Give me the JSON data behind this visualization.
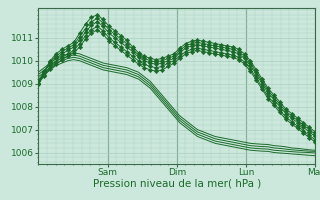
{
  "background_color": "#cce8dc",
  "grid_color": "#aacfbf",
  "line_color": "#1a6b2a",
  "marker_color": "#1a6b2a",
  "xlabel": "Pression niveau de la mer( hPa )",
  "xlabel_fontsize": 7.5,
  "tick_label_fontsize": 6.5,
  "day_labels": [
    "Sam",
    "Dim",
    "Lun",
    "Mar"
  ],
  "ylim": [
    1005.5,
    1012.3
  ],
  "yticks": [
    1006,
    1007,
    1008,
    1009,
    1010,
    1011
  ],
  "n_days": 4,
  "hours_per_day": 24,
  "smooth_series": [
    [
      1009.5,
      1009.7,
      1009.9,
      1010.1,
      1010.2,
      1010.3,
      1010.35,
      1010.3,
      1010.2,
      1010.1,
      1010.0,
      1009.9,
      1009.85,
      1009.8,
      1009.75,
      1009.7,
      1009.6,
      1009.5,
      1009.3,
      1009.1,
      1008.8,
      1008.5,
      1008.2,
      1007.9,
      1007.6,
      1007.4,
      1007.2,
      1007.0,
      1006.9,
      1006.8,
      1006.7,
      1006.65,
      1006.6,
      1006.55,
      1006.5,
      1006.45,
      1006.4,
      1006.38,
      1006.36,
      1006.35,
      1006.3,
      1006.28,
      1006.25,
      1006.2,
      1006.18,
      1006.15,
      1006.12,
      1006.1
    ],
    [
      1009.4,
      1009.6,
      1009.8,
      1010.0,
      1010.1,
      1010.2,
      1010.25,
      1010.2,
      1010.1,
      1010.0,
      1009.9,
      1009.8,
      1009.75,
      1009.7,
      1009.65,
      1009.6,
      1009.5,
      1009.4,
      1009.2,
      1009.0,
      1008.7,
      1008.4,
      1008.1,
      1007.8,
      1007.5,
      1007.3,
      1007.1,
      1006.9,
      1006.8,
      1006.7,
      1006.6,
      1006.55,
      1006.5,
      1006.45,
      1006.4,
      1006.35,
      1006.3,
      1006.28,
      1006.26,
      1006.25,
      1006.2,
      1006.18,
      1006.15,
      1006.12,
      1006.1,
      1006.08,
      1006.06,
      1006.05
    ],
    [
      1009.3,
      1009.5,
      1009.7,
      1009.9,
      1010.0,
      1010.1,
      1010.15,
      1010.1,
      1010.0,
      1009.9,
      1009.8,
      1009.7,
      1009.65,
      1009.6,
      1009.55,
      1009.5,
      1009.4,
      1009.3,
      1009.1,
      1008.9,
      1008.6,
      1008.3,
      1008.0,
      1007.7,
      1007.4,
      1007.2,
      1007.0,
      1006.8,
      1006.7,
      1006.6,
      1006.5,
      1006.45,
      1006.4,
      1006.35,
      1006.3,
      1006.25,
      1006.2,
      1006.18,
      1006.16,
      1006.15,
      1006.1,
      1006.08,
      1006.06,
      1006.04,
      1006.02,
      1006.01,
      1006.0,
      1005.98
    ],
    [
      1009.2,
      1009.4,
      1009.6,
      1009.8,
      1009.9,
      1010.0,
      1010.05,
      1010.0,
      1009.9,
      1009.8,
      1009.7,
      1009.6,
      1009.55,
      1009.5,
      1009.45,
      1009.4,
      1009.3,
      1009.2,
      1009.0,
      1008.8,
      1008.5,
      1008.2,
      1007.9,
      1007.6,
      1007.3,
      1007.1,
      1006.9,
      1006.7,
      1006.6,
      1006.5,
      1006.4,
      1006.35,
      1006.3,
      1006.25,
      1006.2,
      1006.15,
      1006.1,
      1006.08,
      1006.06,
      1006.05,
      1006.0,
      1005.98,
      1005.96,
      1005.94,
      1005.92,
      1005.9,
      1005.88,
      1005.86
    ]
  ],
  "jagged_series": [
    [
      1009.0,
      1009.5,
      1010.0,
      1010.3,
      1010.5,
      1010.65,
      1010.8,
      1011.2,
      1011.6,
      1011.9,
      1012.0,
      1011.8,
      1011.5,
      1011.3,
      1011.1,
      1010.9,
      1010.6,
      1010.35,
      1010.2,
      1010.1,
      1010.05,
      1010.1,
      1010.2,
      1010.3,
      1010.55,
      1010.75,
      1010.85,
      1010.9,
      1010.85,
      1010.8,
      1010.75,
      1010.7,
      1010.65,
      1010.6,
      1010.5,
      1010.3,
      1010.0,
      1009.6,
      1009.2,
      1008.8,
      1008.5,
      1008.2,
      1007.9,
      1007.7,
      1007.5,
      1007.3,
      1007.1,
      1006.9
    ],
    [
      1009.1,
      1009.55,
      1009.95,
      1010.2,
      1010.4,
      1010.55,
      1010.7,
      1011.05,
      1011.4,
      1011.7,
      1011.85,
      1011.65,
      1011.35,
      1011.15,
      1010.95,
      1010.75,
      1010.5,
      1010.25,
      1010.1,
      1010.0,
      1009.95,
      1010.0,
      1010.1,
      1010.2,
      1010.45,
      1010.65,
      1010.75,
      1010.8,
      1010.75,
      1010.7,
      1010.65,
      1010.6,
      1010.55,
      1010.5,
      1010.4,
      1010.2,
      1009.9,
      1009.5,
      1009.1,
      1008.7,
      1008.4,
      1008.1,
      1007.8,
      1007.6,
      1007.4,
      1007.2,
      1007.0,
      1006.8
    ],
    [
      1009.05,
      1009.5,
      1009.9,
      1010.1,
      1010.3,
      1010.45,
      1010.6,
      1010.9,
      1011.25,
      1011.55,
      1011.7,
      1011.5,
      1011.2,
      1011.0,
      1010.8,
      1010.6,
      1010.4,
      1010.15,
      1010.0,
      1009.9,
      1009.85,
      1009.9,
      1010.0,
      1010.1,
      1010.35,
      1010.55,
      1010.65,
      1010.7,
      1010.65,
      1010.6,
      1010.55,
      1010.5,
      1010.45,
      1010.4,
      1010.3,
      1010.1,
      1009.8,
      1009.4,
      1009.0,
      1008.6,
      1008.3,
      1008.0,
      1007.7,
      1007.5,
      1007.3,
      1007.1,
      1006.9,
      1006.7
    ],
    [
      1009.0,
      1009.4,
      1009.75,
      1009.95,
      1010.15,
      1010.3,
      1010.45,
      1010.75,
      1011.1,
      1011.35,
      1011.5,
      1011.3,
      1011.0,
      1010.8,
      1010.6,
      1010.4,
      1010.2,
      1010.0,
      1009.85,
      1009.75,
      1009.7,
      1009.75,
      1009.9,
      1010.0,
      1010.2,
      1010.4,
      1010.5,
      1010.55,
      1010.5,
      1010.45,
      1010.4,
      1010.35,
      1010.3,
      1010.25,
      1010.15,
      1009.95,
      1009.65,
      1009.25,
      1008.85,
      1008.45,
      1008.15,
      1007.85,
      1007.55,
      1007.35,
      1007.15,
      1006.95,
      1006.75,
      1006.55
    ],
    [
      1009.0,
      1009.35,
      1009.65,
      1009.85,
      1010.05,
      1010.2,
      1010.35,
      1010.6,
      1010.95,
      1011.2,
      1011.35,
      1011.15,
      1010.85,
      1010.65,
      1010.45,
      1010.25,
      1010.05,
      1009.85,
      1009.7,
      1009.6,
      1009.55,
      1009.6,
      1009.75,
      1009.9,
      1010.1,
      1010.3,
      1010.4,
      1010.45,
      1010.4,
      1010.35,
      1010.3,
      1010.25,
      1010.2,
      1010.15,
      1010.05,
      1009.85,
      1009.55,
      1009.15,
      1008.75,
      1008.35,
      1008.05,
      1007.75,
      1007.45,
      1007.25,
      1007.05,
      1006.85,
      1006.65,
      1006.45
    ]
  ]
}
